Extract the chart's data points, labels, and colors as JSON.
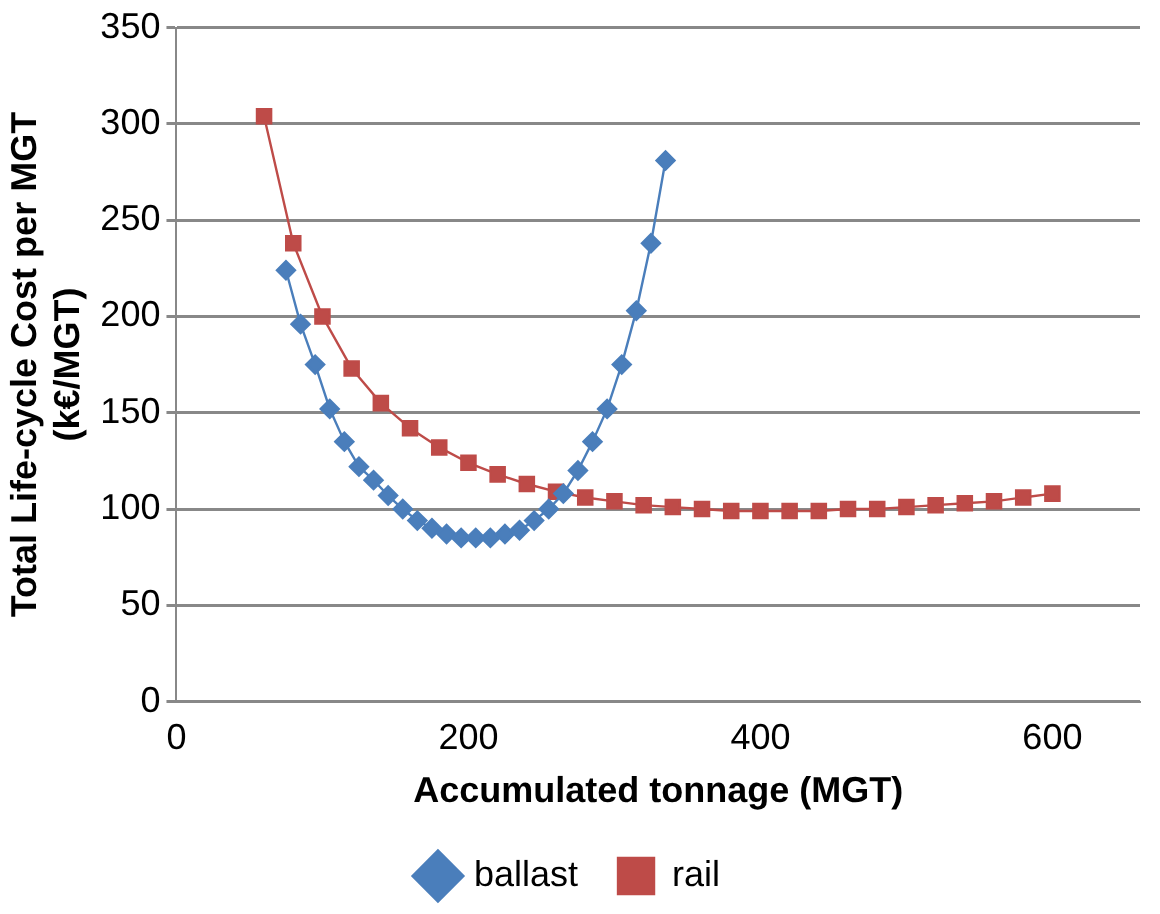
{
  "chart_data": {
    "type": "line",
    "xlabel": "Accumulated tonnage (MGT)",
    "ylabel": "Total Life-cycle Cost per MGT (k€/MGT)",
    "series": [
      {
        "name": "ballast",
        "color": "#4a7ebb",
        "marker": "diamond",
        "x": [
          75,
          85,
          95,
          105,
          115,
          125,
          135,
          145,
          155,
          165,
          175,
          185,
          195,
          205,
          215,
          225,
          235,
          245,
          255,
          265,
          275,
          285,
          295,
          305,
          315,
          325,
          335
        ],
        "values": [
          224,
          196,
          175,
          152,
          135,
          122,
          115,
          107,
          100,
          94,
          90,
          87,
          85,
          85,
          85,
          87,
          89,
          94,
          100,
          108,
          120,
          135,
          152,
          175,
          203,
          238,
          281
        ]
      },
      {
        "name": "rail",
        "color": "#be4b48",
        "marker": "square",
        "x": [
          60,
          80,
          100,
          120,
          140,
          160,
          180,
          200,
          220,
          240,
          260,
          280,
          300,
          320,
          340,
          360,
          380,
          400,
          420,
          440,
          460,
          480,
          500,
          520,
          540,
          560,
          580,
          600
        ],
        "values": [
          304,
          238,
          200,
          173,
          155,
          142,
          132,
          124,
          118,
          113,
          109,
          106,
          104,
          102,
          101,
          100,
          99,
          99,
          99,
          99,
          100,
          100,
          101,
          102,
          103,
          104,
          106,
          108
        ]
      }
    ],
    "xlim": [
      0,
      660
    ],
    "xticks": [
      0,
      200,
      400,
      600
    ],
    "ylim": [
      0,
      350
    ],
    "yticks": [
      0,
      50,
      100,
      150,
      200,
      250,
      300,
      350
    ],
    "grid": "y",
    "legend": "bottom"
  }
}
